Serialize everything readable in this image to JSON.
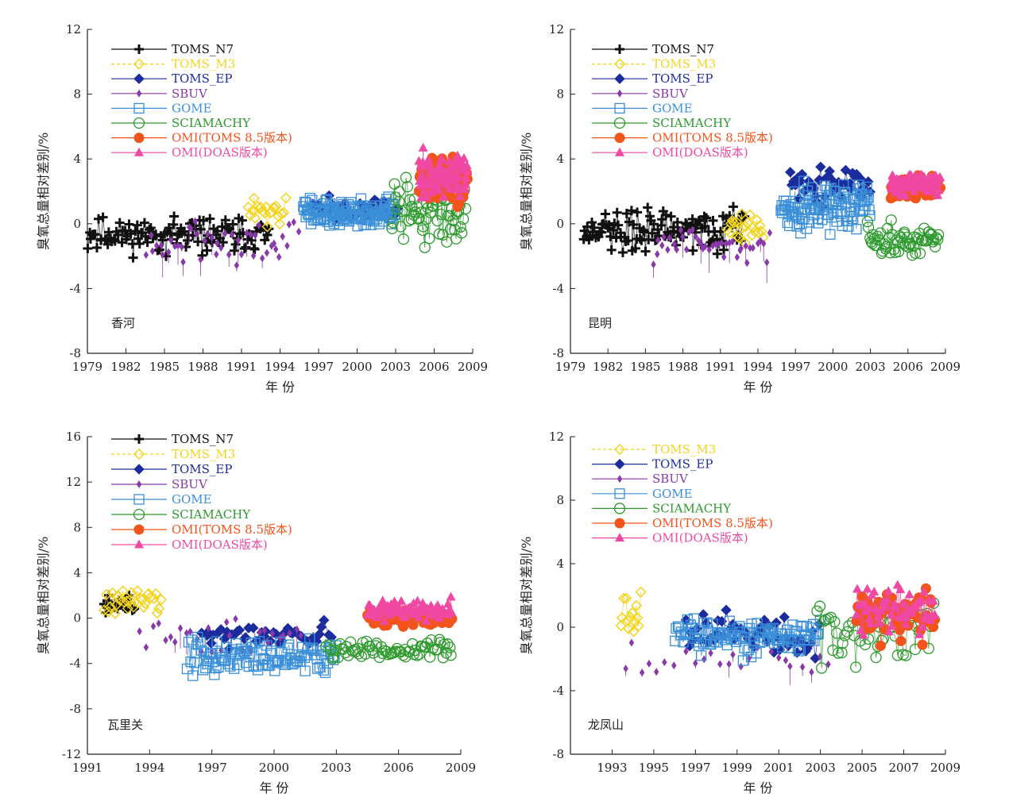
{
  "figure": {
    "series_legend": [
      {
        "key": "n7",
        "label": "TOMS_N7",
        "color": "#111111",
        "marker": "plus"
      },
      {
        "key": "m3",
        "label": "TOMS_M3",
        "color": "#f2d41f",
        "marker": "diamond-open"
      },
      {
        "key": "ep",
        "label": "TOMS_EP",
        "color": "#1c2c9c",
        "marker": "diamond"
      },
      {
        "key": "sbuv",
        "label": "SBUV",
        "color": "#8a3aa8",
        "marker": "diamond-small"
      },
      {
        "key": "gome",
        "label": "GOME",
        "color": "#3a8fd8",
        "marker": "square-open"
      },
      {
        "key": "scia",
        "label": "SCIAMACHY",
        "color": "#2e9a2e",
        "marker": "circle-open"
      },
      {
        "key": "omit",
        "label": "OMI(TOMS 8.5版本)",
        "color": "#f2541c",
        "marker": "circle"
      },
      {
        "key": "omid",
        "label": "OMI(DOAS版本)",
        "color": "#ef49a4",
        "marker": "triangle"
      }
    ]
  },
  "chart_data": [
    {
      "type": "scatter",
      "station": "香河",
      "xlabel": "年 份",
      "ylabel": "臭氧总量相对差别/%",
      "xlim": [
        1979,
        2009
      ],
      "ylim": [
        -8,
        12
      ],
      "xticks": [
        "1979",
        "1982",
        "1985",
        "1988",
        "1991",
        "1994",
        "1997",
        "2000",
        "2003",
        "2006",
        "2009"
      ],
      "yticks": [
        "12",
        "8",
        "4",
        "0",
        "-4",
        "-8"
      ],
      "legend": [
        "n7",
        "m3",
        "ep",
        "sbuv",
        "gome",
        "scia",
        "omit",
        "omid"
      ],
      "series": [
        {
          "key": "n7",
          "x_range": [
            1979.0,
            1993.2
          ],
          "center": -0.7,
          "spread": 1.5,
          "n": 120
        },
        {
          "key": "m3",
          "x_range": [
            1991.5,
            1994.5
          ],
          "center": 0.8,
          "spread": 1.2,
          "n": 22
        },
        {
          "key": "ep",
          "x_range": [
            1996.5,
            2003.2
          ],
          "center": 1.0,
          "spread": 1.0,
          "n": 35
        },
        {
          "key": "sbuv",
          "x_range": [
            1983.5,
            1995.5
          ],
          "center": -1.2,
          "spread": 1.7,
          "n": 45
        },
        {
          "key": "gome",
          "x_range": [
            1995.8,
            2003.0
          ],
          "center": 0.7,
          "spread": 1.2,
          "n": 130
        },
        {
          "key": "scia",
          "x_range": [
            2002.7,
            2008.5
          ],
          "center": 0.6,
          "spread": 2.6,
          "n": 60
        },
        {
          "key": "omit",
          "x_range": [
            2004.8,
            2008.6
          ],
          "center": 2.6,
          "spread": 1.9,
          "n": 75
        },
        {
          "key": "omid",
          "x_range": [
            2004.8,
            2008.6
          ],
          "center": 3.0,
          "spread": 2.0,
          "n": 80
        }
      ]
    },
    {
      "type": "scatter",
      "station": "昆明",
      "xlabel": "年 份",
      "ylabel": "臭氧总量相对差别/%",
      "xlim": [
        1979,
        2009
      ],
      "ylim": [
        -8,
        12
      ],
      "xticks": [
        "1979",
        "1982",
        "1985",
        "1988",
        "1991",
        "1994",
        "1997",
        "2000",
        "2003",
        "2006",
        "2009"
      ],
      "yticks": [
        "12",
        "8",
        "4",
        "0",
        "-4",
        "-8"
      ],
      "legend": [
        "n7",
        "m3",
        "ep",
        "sbuv",
        "gome",
        "scia",
        "omit",
        "omid"
      ],
      "series": [
        {
          "key": "n7",
          "x_range": [
            1980.0,
            1993.0
          ],
          "center": -0.5,
          "spread": 1.8,
          "n": 120
        },
        {
          "key": "m3",
          "x_range": [
            1991.5,
            1994.5
          ],
          "center": 0.0,
          "spread": 1.8,
          "n": 22
        },
        {
          "key": "ep",
          "x_range": [
            1996.5,
            2003.0
          ],
          "center": 2.3,
          "spread": 1.7,
          "n": 45
        },
        {
          "key": "sbuv",
          "x_range": [
            1985.5,
            1995.0
          ],
          "center": -1.2,
          "spread": 1.6,
          "n": 40
        },
        {
          "key": "gome",
          "x_range": [
            1995.8,
            2003.0
          ],
          "center": 1.0,
          "spread": 2.0,
          "n": 110
        },
        {
          "key": "scia",
          "x_range": [
            2002.7,
            2008.5
          ],
          "center": -0.9,
          "spread": 1.6,
          "n": 60
        },
        {
          "key": "omit",
          "x_range": [
            2004.6,
            2008.6
          ],
          "center": 2.2,
          "spread": 0.9,
          "n": 70
        },
        {
          "key": "omid",
          "x_range": [
            2004.6,
            2008.6
          ],
          "center": 2.5,
          "spread": 1.1,
          "n": 80
        }
      ]
    },
    {
      "type": "scatter",
      "station": "瓦里关",
      "xlabel": "年 份",
      "ylabel": "臭氧总量相对差别/%",
      "xlim": [
        1991,
        2009
      ],
      "ylim": [
        -12,
        16
      ],
      "xticks": [
        "1991",
        "1994",
        "1997",
        "2000",
        "2003",
        "2006",
        "2009"
      ],
      "yticks": [
        "16",
        "12",
        "8",
        "4",
        "0",
        "-4",
        "-8",
        "-12"
      ],
      "legend": [
        "n7",
        "m3",
        "ep",
        "sbuv",
        "gome",
        "scia",
        "omit",
        "omid"
      ],
      "series": [
        {
          "key": "n7",
          "x_range": [
            1991.8,
            1993.3
          ],
          "center": 1.2,
          "spread": 1.0,
          "n": 30
        },
        {
          "key": "m3",
          "x_range": [
            1991.8,
            1994.6
          ],
          "center": 1.6,
          "spread": 1.5,
          "n": 30
        },
        {
          "key": "ep",
          "x_range": [
            1996.5,
            2002.8
          ],
          "center": -1.5,
          "spread": 1.5,
          "n": 45
        },
        {
          "key": "sbuv",
          "x_range": [
            1993.5,
            2001.5
          ],
          "center": -1.5,
          "spread": 2.0,
          "n": 30
        },
        {
          "key": "gome",
          "x_range": [
            1995.8,
            2003.0
          ],
          "center": -3.5,
          "spread": 2.0,
          "n": 110
        },
        {
          "key": "scia",
          "x_range": [
            2002.5,
            2008.6
          ],
          "center": -2.8,
          "spread": 1.2,
          "n": 70
        },
        {
          "key": "omit",
          "x_range": [
            2004.5,
            2008.6
          ],
          "center": 0.0,
          "spread": 0.9,
          "n": 75
        },
        {
          "key": "omid",
          "x_range": [
            2004.5,
            2008.6
          ],
          "center": 0.7,
          "spread": 1.2,
          "n": 80
        }
      ]
    },
    {
      "type": "scatter",
      "station": "龙凤山",
      "xlabel": "年 份",
      "ylabel": "臭氧总量相对差别/%",
      "xlim": [
        1991,
        2009
      ],
      "ylim": [
        -8,
        12
      ],
      "xticks": [
        "1993",
        "1995",
        "1997",
        "1999",
        "2001",
        "2003",
        "2005",
        "2007",
        "2009"
      ],
      "yticks": [
        "12",
        "8",
        "4",
        "0",
        "-4",
        "-8"
      ],
      "legend": [
        "m3",
        "ep",
        "sbuv",
        "gome",
        "scia",
        "omit",
        "omid"
      ],
      "series": [
        {
          "key": "m3",
          "x_range": [
            1993.4,
            1994.4
          ],
          "center": 0.8,
          "spread": 2.0,
          "n": 14
        },
        {
          "key": "ep",
          "x_range": [
            1996.5,
            2003.0
          ],
          "center": -0.3,
          "spread": 2.0,
          "n": 50
        },
        {
          "key": "sbuv",
          "x_range": [
            1993.5,
            2003.5
          ],
          "center": -2.2,
          "spread": 1.5,
          "n": 25
        },
        {
          "key": "gome",
          "x_range": [
            1996.0,
            2003.0
          ],
          "center": -0.5,
          "spread": 1.6,
          "n": 110
        },
        {
          "key": "scia",
          "x_range": [
            2002.8,
            2008.5
          ],
          "center": -0.3,
          "spread": 2.6,
          "n": 55
        },
        {
          "key": "omit",
          "x_range": [
            2004.7,
            2008.5
          ],
          "center": 0.7,
          "spread": 2.1,
          "n": 55
        },
        {
          "key": "omid",
          "x_range": [
            2004.7,
            2008.5
          ],
          "center": 1.0,
          "spread": 2.2,
          "n": 60
        }
      ]
    }
  ]
}
